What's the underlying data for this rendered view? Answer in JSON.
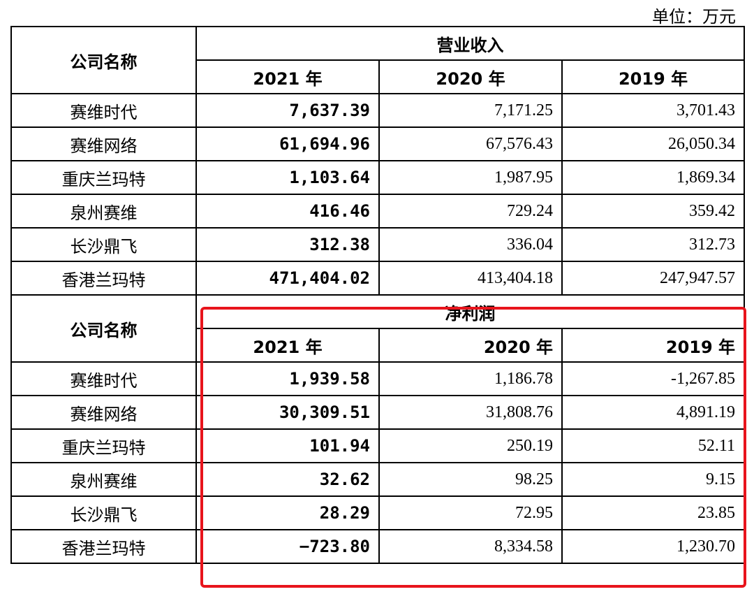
{
  "unit_label": "单位：万元",
  "sections": [
    {
      "company_header": "公司名称",
      "metric": "营业收入",
      "years": [
        "2021 年",
        "2020 年",
        "2019 年"
      ],
      "rows": [
        {
          "name": "赛维时代",
          "v2021": "7,637.39",
          "v2020": "7,171.25",
          "v2019": "3,701.43"
        },
        {
          "name": "赛维网络",
          "v2021": "61,694.96",
          "v2020": "67,576.43",
          "v2019": "26,050.34"
        },
        {
          "name": "重庆兰玛特",
          "v2021": "1,103.64",
          "v2020": "1,987.95",
          "v2019": "1,869.34"
        },
        {
          "name": "泉州赛维",
          "v2021": "416.46",
          "v2020": "729.24",
          "v2019": "359.42"
        },
        {
          "name": "长沙鼎飞",
          "v2021": "312.38",
          "v2020": "336.04",
          "v2019": "312.73"
        },
        {
          "name": "香港兰玛特",
          "v2021": "471,404.02",
          "v2020": "413,404.18",
          "v2019": "247,947.57"
        }
      ]
    },
    {
      "company_header": "公司名称",
      "metric": "净利润",
      "years": [
        "2021 年",
        "2020 年",
        "2019 年"
      ],
      "rows": [
        {
          "name": "赛维时代",
          "v2021": "1,939.58",
          "v2020": "1,186.78",
          "v2019": "-1,267.85"
        },
        {
          "name": "赛维网络",
          "v2021": "30,309.51",
          "v2020": "31,808.76",
          "v2019": "4,891.19"
        },
        {
          "name": "重庆兰玛特",
          "v2021": "101.94",
          "v2020": "250.19",
          "v2019": "52.11"
        },
        {
          "name": "泉州赛维",
          "v2021": "32.62",
          "v2020": "98.25",
          "v2019": "9.15"
        },
        {
          "name": "长沙鼎飞",
          "v2021": "28.29",
          "v2020": "72.95",
          "v2019": "23.85"
        },
        {
          "name": "香港兰玛特",
          "v2021": "−723.80",
          "v2020": "8,334.58",
          "v2019": "1,230.70"
        }
      ]
    }
  ],
  "highlight_color": "#e8141c"
}
